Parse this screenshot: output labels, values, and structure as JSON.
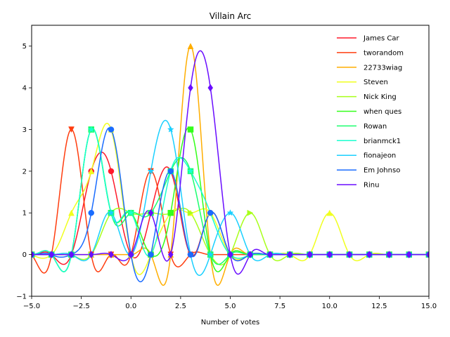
{
  "chart_data": {
    "type": "line",
    "title": "Villain Arc",
    "xlabel": "Number of votes",
    "ylabel": "",
    "xlim": [
      -5,
      15
    ],
    "ylim": [
      -1,
      5.5
    ],
    "xticks": [
      -5,
      -2.5,
      0,
      2.5,
      5,
      7.5,
      10,
      12.5,
      15
    ],
    "xtick_labels": [
      "−5.0",
      "−2.5",
      "0.0",
      "2.5",
      "5.0",
      "7.5",
      "10.0",
      "12.5",
      "15.0"
    ],
    "yticks": [
      -1,
      0,
      1,
      2,
      3,
      4,
      5
    ],
    "ytick_labels": [
      "−1",
      "0",
      "1",
      "2",
      "3",
      "4",
      "5"
    ],
    "grid": false,
    "legend": "top-right",
    "marker_x": [
      -5,
      -4,
      -3,
      -2,
      -1,
      0,
      1,
      2,
      3,
      4,
      5,
      6,
      7,
      8,
      9,
      10,
      11,
      12,
      13,
      14,
      15
    ],
    "series": [
      {
        "name": "James Car",
        "color": "#ff1a2a",
        "marker": "circle",
        "values": [
          0,
          0,
          0,
          2,
          2,
          0,
          1,
          2,
          0,
          1,
          0,
          0,
          0,
          0,
          0,
          0,
          0,
          0,
          0,
          0,
          0
        ]
      },
      {
        "name": "tworandom",
        "color": "#ff3d0f",
        "marker": "triangle-down",
        "values": [
          0,
          0,
          3,
          0,
          0,
          0,
          2,
          0,
          0,
          0,
          0,
          0,
          0,
          0,
          0,
          0,
          0,
          0,
          0,
          0,
          0
        ]
      },
      {
        "name": "22733wiag",
        "color": "#ffae00",
        "marker": "triangle-up",
        "values": [
          0,
          0,
          0,
          0,
          0,
          0,
          0,
          0,
          5,
          0,
          0,
          0,
          0,
          0,
          0,
          0,
          0,
          0,
          0,
          0,
          0
        ]
      },
      {
        "name": "Steven",
        "color": "#f0ff1f",
        "marker": "triangle-up",
        "values": [
          0,
          0,
          1,
          2,
          3,
          0,
          0,
          1,
          1,
          1,
          0,
          0,
          0,
          0,
          0,
          1,
          0,
          0,
          0,
          0,
          0
        ]
      },
      {
        "name": "Nick King",
        "color": "#a8ff1a",
        "marker": "triangle-right",
        "values": [
          0,
          0,
          0,
          0,
          1,
          1,
          1,
          1,
          1,
          0,
          0,
          1,
          0,
          0,
          0,
          0,
          0,
          0,
          0,
          0,
          0
        ]
      },
      {
        "name": "when ques",
        "color": "#33ff1a",
        "marker": "square",
        "values": [
          0,
          0,
          0,
          3,
          1,
          1,
          0,
          1,
          3,
          0,
          0,
          0,
          0,
          0,
          0,
          0,
          0,
          0,
          0,
          0,
          0
        ]
      },
      {
        "name": "Rowan",
        "color": "#1aff6e",
        "marker": "square",
        "values": [
          0,
          0,
          0,
          3,
          1,
          1,
          1,
          2,
          2,
          0,
          0,
          0,
          0,
          0,
          0,
          0,
          0,
          0,
          0,
          0,
          0
        ]
      },
      {
        "name": "brianmck1",
        "color": "#1affcf",
        "marker": "star",
        "values": [
          0,
          0,
          0,
          3,
          1,
          1,
          0,
          2,
          2,
          1,
          0,
          0,
          0,
          0,
          0,
          0,
          0,
          0,
          0,
          0,
          0
        ]
      },
      {
        "name": "fionajeon",
        "color": "#1ad0ff",
        "marker": "star",
        "values": [
          0,
          0,
          0,
          0,
          1,
          0,
          2,
          3,
          0,
          0,
          1,
          0,
          0,
          0,
          0,
          0,
          0,
          0,
          0,
          0,
          0
        ]
      },
      {
        "name": "Em Johnso",
        "color": "#1a6cff",
        "marker": "circle",
        "values": [
          0,
          0,
          0,
          1,
          3,
          0,
          0,
          2,
          0,
          1,
          0,
          0,
          0,
          0,
          0,
          0,
          0,
          0,
          0,
          0,
          0
        ]
      },
      {
        "name": "Rinu",
        "color": "#6a0dff",
        "marker": "diamond",
        "values": [
          0,
          0,
          0,
          0,
          0,
          0,
          1,
          0,
          4,
          4,
          0,
          0,
          0,
          0,
          0,
          0,
          0,
          0,
          0,
          0,
          0
        ]
      }
    ]
  }
}
